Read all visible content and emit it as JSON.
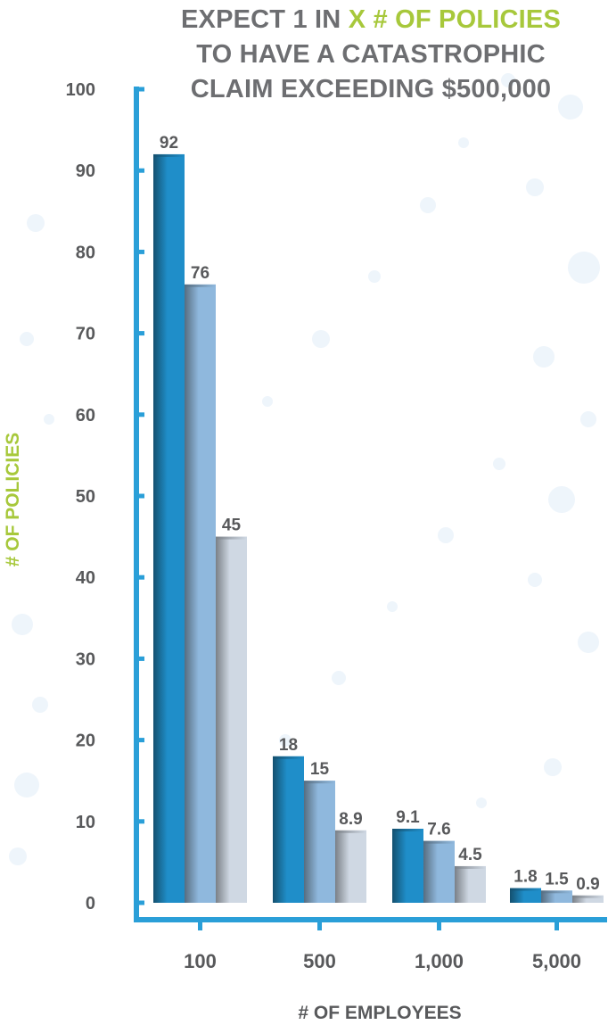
{
  "chart_data": {
    "type": "bar",
    "title": {
      "line1_prefix": "EXPECT 1 IN ",
      "line1_accent": "X # OF POLICIES",
      "line2": "TO HAVE A CATASTROPHIC",
      "line3": "CLAIM EXCEEDING $500,000"
    },
    "xlabel": "# OF EMPLOYEES",
    "ylabel": "# OF POLICIES",
    "ylim": [
      0,
      100
    ],
    "yticks": [
      "0",
      "10",
      "20",
      "30",
      "40",
      "50",
      "60",
      "70",
      "80",
      "90",
      "100"
    ],
    "categories": [
      "100",
      "500",
      "1,000",
      "5,000"
    ],
    "series": [
      {
        "values": [
          92,
          18,
          9.1,
          1.8
        ],
        "labels": [
          "92",
          "18",
          "9.1",
          "1.8"
        ]
      },
      {
        "values": [
          76,
          15,
          7.6,
          1.5
        ],
        "labels": [
          "76",
          "15",
          "7.6",
          "1.5"
        ]
      },
      {
        "values": [
          45,
          8.9,
          4.5,
          0.9
        ],
        "labels": [
          "45",
          "8.9",
          "4.5",
          "0.9"
        ]
      }
    ],
    "legend": "none",
    "grid": false,
    "colors": {
      "axis": "#2a9fd8",
      "series": [
        "#1f8ec9",
        "#8fb8dd",
        "#cfd8e3"
      ],
      "series_dark": [
        "#14506f",
        "#576d80",
        "#7a8087"
      ],
      "tick_text": "#58595b",
      "label_text": "#58595b",
      "title": "#6d6e71",
      "accent": "#a7c83b"
    }
  }
}
